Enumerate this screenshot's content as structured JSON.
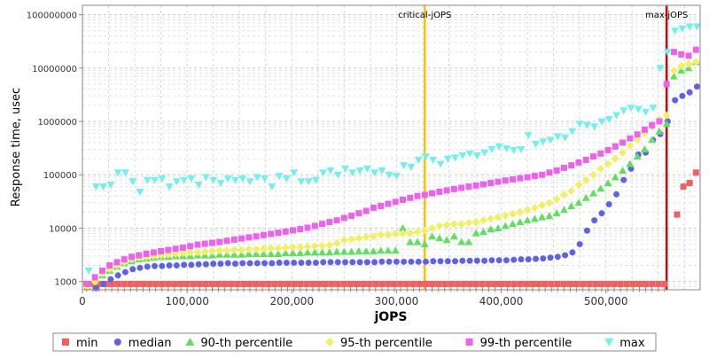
{
  "chart_data": {
    "type": "scatter",
    "xlabel": "jOPS",
    "ylabel": "Response time, usec",
    "y_scale": "log",
    "xlim": [
      0,
      590000
    ],
    "ylim": [
      700,
      150000000
    ],
    "x_ticks": [
      0,
      100000,
      200000,
      300000,
      400000,
      500000
    ],
    "x_tick_labels": [
      "0",
      "100,000",
      "200,000",
      "300,000",
      "400,000",
      "500,000"
    ],
    "y_ticks": [
      1000,
      10000,
      100000,
      1000000,
      10000000,
      100000000
    ],
    "y_tick_labels": [
      "1000",
      "10000",
      "100000",
      "1000000",
      "10000000",
      "100000000"
    ],
    "grid": true,
    "legend_position": "bottom",
    "markers": [
      {
        "label": "critical-jOPS",
        "x": 327000,
        "color": "#f5c400"
      },
      {
        "label": "max-jOPS",
        "x": 558000,
        "color": "#dd0000"
      }
    ],
    "series": [
      {
        "name": "min",
        "color": "#f06060",
        "marker": "square",
        "x": [
          4000,
          10000,
          16000,
          22000,
          28000,
          34000,
          40000,
          46000,
          52000,
          58000,
          64000,
          70000,
          76000,
          82000,
          88000,
          94000,
          100000,
          106000,
          112000,
          118000,
          124000,
          130000,
          136000,
          142000,
          148000,
          154000,
          160000,
          166000,
          172000,
          178000,
          184000,
          190000,
          196000,
          202000,
          208000,
          214000,
          220000,
          226000,
          232000,
          238000,
          244000,
          250000,
          256000,
          262000,
          268000,
          274000,
          280000,
          286000,
          292000,
          298000,
          304000,
          310000,
          316000,
          322000,
          328000,
          334000,
          340000,
          346000,
          352000,
          358000,
          364000,
          370000,
          376000,
          382000,
          388000,
          394000,
          400000,
          406000,
          412000,
          418000,
          424000,
          430000,
          436000,
          442000,
          448000,
          454000,
          460000,
          466000,
          472000,
          478000,
          484000,
          490000,
          496000,
          502000,
          508000,
          514000,
          520000,
          526000,
          532000,
          538000,
          544000,
          550000,
          556000,
          568000,
          574000,
          580000,
          586000
        ],
        "y": [
          900,
          900,
          900,
          900,
          900,
          900,
          900,
          900,
          900,
          900,
          900,
          900,
          900,
          900,
          900,
          900,
          900,
          900,
          900,
          900,
          900,
          900,
          900,
          900,
          900,
          900,
          900,
          900,
          900,
          900,
          900,
          900,
          900,
          900,
          900,
          900,
          900,
          900,
          900,
          900,
          900,
          900,
          900,
          900,
          900,
          900,
          900,
          900,
          900,
          900,
          900,
          900,
          900,
          900,
          900,
          900,
          900,
          900,
          900,
          900,
          900,
          900,
          900,
          900,
          900,
          900,
          900,
          900,
          900,
          900,
          900,
          900,
          900,
          900,
          900,
          900,
          900,
          900,
          900,
          900,
          900,
          900,
          900,
          900,
          900,
          900,
          900,
          900,
          900,
          900,
          900,
          900,
          900,
          18000,
          60000,
          70000,
          110000
        ]
      },
      {
        "name": "median",
        "color": "#6060f0",
        "marker": "circle",
        "x": [
          5000,
          13000,
          20000,
          27000,
          34000,
          41000,
          48000,
          55000,
          62000,
          69000,
          76000,
          83000,
          90000,
          97000,
          104000,
          111000,
          118000,
          125000,
          132000,
          139000,
          146000,
          153000,
          160000,
          167000,
          174000,
          181000,
          188000,
          195000,
          202000,
          209000,
          216000,
          223000,
          230000,
          237000,
          244000,
          251000,
          258000,
          265000,
          272000,
          279000,
          286000,
          293000,
          300000,
          307000,
          314000,
          321000,
          328000,
          335000,
          342000,
          349000,
          356000,
          363000,
          370000,
          377000,
          384000,
          391000,
          398000,
          405000,
          412000,
          419000,
          426000,
          433000,
          440000,
          447000,
          454000,
          461000,
          468000,
          475000,
          482000,
          489000,
          496000,
          503000,
          510000,
          517000,
          524000,
          531000,
          538000,
          545000,
          552000,
          559000,
          566000,
          573000,
          580000,
          587000
        ],
        "y": [
          800,
          750,
          900,
          1100,
          1300,
          1500,
          1700,
          1800,
          1900,
          1950,
          1950,
          2000,
          2000,
          2050,
          2050,
          2100,
          2100,
          2150,
          2150,
          2200,
          2150,
          2200,
          2200,
          2200,
          2200,
          2200,
          2250,
          2250,
          2250,
          2250,
          2250,
          2250,
          2300,
          2300,
          2300,
          2300,
          2300,
          2300,
          2300,
          2300,
          2350,
          2350,
          2350,
          2350,
          2350,
          2350,
          2350,
          2400,
          2400,
          2400,
          2400,
          2450,
          2450,
          2450,
          2450,
          2500,
          2500,
          2500,
          2550,
          2600,
          2600,
          2650,
          2700,
          2800,
          2900,
          3100,
          3500,
          5000,
          9000,
          14000,
          19000,
          28000,
          43000,
          80000,
          130000,
          240000,
          260000,
          450000,
          580000,
          1000000,
          2500000,
          3000000,
          3500000,
          4500000
        ]
      },
      {
        "name": "90-th percentile",
        "color": "#60e060",
        "marker": "triangle-up",
        "x": [
          5000,
          12000,
          19000,
          26000,
          33000,
          40000,
          47000,
          54000,
          61000,
          68000,
          75000,
          82000,
          89000,
          96000,
          103000,
          110000,
          117000,
          124000,
          131000,
          138000,
          145000,
          152000,
          159000,
          166000,
          173000,
          180000,
          187000,
          194000,
          201000,
          208000,
          215000,
          222000,
          229000,
          236000,
          243000,
          250000,
          257000,
          264000,
          271000,
          278000,
          285000,
          292000,
          299000,
          306000,
          313000,
          320000,
          327000,
          334000,
          341000,
          348000,
          355000,
          362000,
          369000,
          376000,
          383000,
          390000,
          397000,
          404000,
          411000,
          418000,
          425000,
          432000,
          439000,
          446000,
          453000,
          460000,
          467000,
          474000,
          481000,
          488000,
          495000,
          502000,
          509000,
          516000,
          523000,
          530000,
          537000,
          544000,
          551000,
          558000,
          565000,
          572000,
          579000,
          586000
        ],
        "y": [
          800,
          1000,
          1300,
          1600,
          1900,
          2200,
          2400,
          2600,
          2700,
          2800,
          2900,
          2900,
          3000,
          3000,
          3000,
          3100,
          3100,
          3100,
          3200,
          3200,
          3200,
          3200,
          3300,
          3300,
          3300,
          3300,
          3300,
          3400,
          3400,
          3400,
          3500,
          3500,
          3500,
          3500,
          3600,
          3600,
          3600,
          3700,
          3700,
          3700,
          3800,
          3800,
          3800,
          10000,
          5500,
          5500,
          5000,
          7000,
          6500,
          6000,
          7000,
          5500,
          5500,
          8000,
          8500,
          9500,
          10000,
          11000,
          12000,
          13000,
          14000,
          15000,
          16000,
          17000,
          19000,
          22000,
          26000,
          30000,
          37000,
          45000,
          55000,
          70000,
          90000,
          120000,
          160000,
          220000,
          300000,
          450000,
          650000,
          900000,
          7000000,
          9000000,
          10000000,
          13000000
        ]
      },
      {
        "name": "95-th percentile",
        "color": "#f0f060",
        "marker": "diamond",
        "x": [
          5000,
          12000,
          19000,
          26000,
          33000,
          40000,
          47000,
          54000,
          61000,
          68000,
          75000,
          82000,
          89000,
          96000,
          103000,
          110000,
          117000,
          124000,
          131000,
          138000,
          145000,
          152000,
          159000,
          166000,
          173000,
          180000,
          187000,
          194000,
          201000,
          208000,
          215000,
          222000,
          229000,
          236000,
          243000,
          250000,
          257000,
          264000,
          271000,
          278000,
          285000,
          292000,
          299000,
          306000,
          313000,
          320000,
          327000,
          334000,
          341000,
          348000,
          355000,
          362000,
          369000,
          376000,
          383000,
          390000,
          397000,
          404000,
          411000,
          418000,
          425000,
          432000,
          439000,
          446000,
          453000,
          460000,
          467000,
          474000,
          481000,
          488000,
          495000,
          502000,
          509000,
          516000,
          523000,
          530000,
          537000,
          544000,
          551000,
          558000,
          565000,
          572000,
          579000,
          586000
        ],
        "y": [
          800,
          1000,
          1400,
          1700,
          2000,
          2300,
          2600,
          2800,
          2900,
          3000,
          3100,
          3200,
          3300,
          3400,
          3500,
          3500,
          3600,
          3700,
          3800,
          3800,
          3900,
          3900,
          4000,
          4000,
          4100,
          4200,
          4200,
          4300,
          4400,
          4400,
          4500,
          4600,
          4700,
          4800,
          5200,
          6000,
          6200,
          6500,
          6800,
          7000,
          7500,
          7500,
          7800,
          8000,
          8000,
          8500,
          9000,
          10000,
          11000,
          11500,
          12000,
          12000,
          12500,
          13000,
          14000,
          15000,
          16000,
          17000,
          18500,
          20000,
          22000,
          24000,
          27000,
          30000,
          35000,
          42000,
          50000,
          65000,
          80000,
          100000,
          130000,
          160000,
          200000,
          260000,
          350000,
          450000,
          600000,
          800000,
          1100000,
          1300000,
          9000000,
          11000000,
          12000000,
          13000000
        ]
      },
      {
        "name": "99-th percentile",
        "color": "#f060f0",
        "marker": "square",
        "x": [
          5000,
          12000,
          19000,
          26000,
          33000,
          40000,
          47000,
          54000,
          61000,
          68000,
          75000,
          82000,
          89000,
          96000,
          103000,
          110000,
          117000,
          124000,
          131000,
          138000,
          145000,
          152000,
          159000,
          166000,
          173000,
          180000,
          187000,
          194000,
          201000,
          208000,
          215000,
          222000,
          229000,
          236000,
          243000,
          250000,
          257000,
          264000,
          271000,
          278000,
          285000,
          292000,
          299000,
          306000,
          313000,
          320000,
          327000,
          334000,
          341000,
          348000,
          355000,
          362000,
          369000,
          376000,
          383000,
          390000,
          397000,
          404000,
          411000,
          418000,
          425000,
          432000,
          439000,
          446000,
          453000,
          460000,
          467000,
          474000,
          481000,
          488000,
          495000,
          502000,
          509000,
          516000,
          523000,
          530000,
          537000,
          544000,
          551000,
          558000,
          565000,
          572000,
          579000,
          586000
        ],
        "y": [
          900,
          1200,
          1600,
          2000,
          2300,
          2600,
          2900,
          3100,
          3300,
          3500,
          3700,
          3900,
          4100,
          4300,
          4600,
          4900,
          5100,
          5300,
          5500,
          5800,
          6100,
          6400,
          6700,
          7000,
          7400,
          7800,
          8200,
          8600,
          9100,
          9600,
          10200,
          11000,
          12000,
          13000,
          14000,
          15500,
          17000,
          19000,
          21000,
          24000,
          26000,
          28500,
          31000,
          34000,
          37000,
          40000,
          42000,
          45000,
          48000,
          51000,
          54000,
          57000,
          60000,
          63000,
          66000,
          70000,
          74000,
          78000,
          82000,
          86000,
          90000,
          95000,
          100000,
          110000,
          120000,
          135000,
          150000,
          170000,
          190000,
          220000,
          250000,
          290000,
          340000,
          400000,
          480000,
          570000,
          700000,
          850000,
          1000000,
          5000000,
          20000000,
          18000000,
          17000000,
          22000000
        ]
      },
      {
        "name": "max",
        "color": "#70f0f0",
        "marker": "triangle-down",
        "x": [
          6000,
          13000,
          20000,
          27000,
          34000,
          41000,
          48000,
          55000,
          62000,
          69000,
          76000,
          83000,
          90000,
          97000,
          104000,
          111000,
          118000,
          125000,
          132000,
          139000,
          146000,
          153000,
          160000,
          167000,
          174000,
          181000,
          188000,
          195000,
          202000,
          209000,
          216000,
          223000,
          230000,
          237000,
          244000,
          251000,
          258000,
          265000,
          272000,
          279000,
          286000,
          293000,
          300000,
          307000,
          314000,
          321000,
          328000,
          335000,
          342000,
          349000,
          356000,
          363000,
          370000,
          377000,
          384000,
          391000,
          398000,
          405000,
          412000,
          419000,
          426000,
          433000,
          440000,
          447000,
          454000,
          461000,
          468000,
          475000,
          482000,
          489000,
          496000,
          503000,
          510000,
          517000,
          524000,
          531000,
          538000,
          545000,
          552000,
          559000,
          566000,
          573000,
          580000,
          587000
        ],
        "y": [
          1600,
          60000,
          60000,
          65000,
          110000,
          110000,
          75000,
          48000,
          80000,
          80000,
          85000,
          60000,
          75000,
          80000,
          85000,
          65000,
          90000,
          80000,
          70000,
          85000,
          80000,
          85000,
          75000,
          90000,
          85000,
          60000,
          95000,
          85000,
          110000,
          75000,
          75000,
          80000,
          110000,
          120000,
          100000,
          130000,
          110000,
          120000,
          130000,
          110000,
          120000,
          100000,
          95000,
          150000,
          140000,
          190000,
          220000,
          190000,
          160000,
          200000,
          210000,
          230000,
          250000,
          230000,
          260000,
          300000,
          340000,
          310000,
          290000,
          300000,
          550000,
          380000,
          420000,
          450000,
          520000,
          500000,
          650000,
          900000,
          850000,
          800000,
          1000000,
          1100000,
          1300000,
          1600000,
          1800000,
          1700000,
          1500000,
          1800000,
          10000000,
          20000000,
          50000000,
          55000000,
          60000000,
          60000000
        ]
      }
    ]
  }
}
